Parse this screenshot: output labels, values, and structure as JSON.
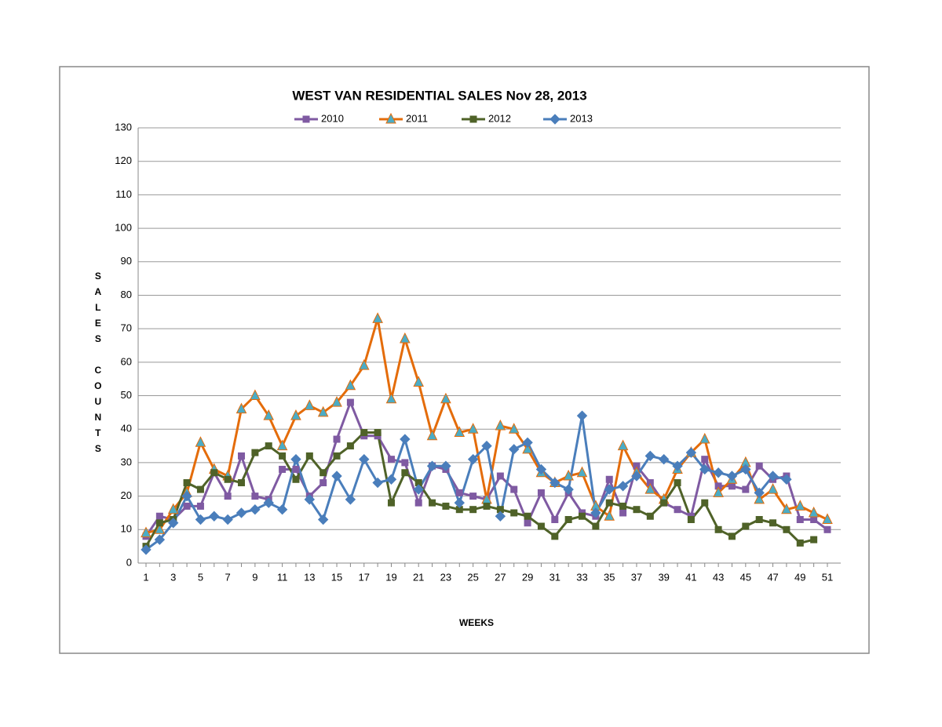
{
  "chart_data": {
    "type": "line",
    "title": "WEST VAN RESIDENTIAL SALES  Nov 28, 2013",
    "xlabel": "WEEKS",
    "ylabel": "SALES COUNTS",
    "categories": [
      1,
      null,
      3,
      null,
      5,
      null,
      7,
      null,
      9,
      null,
      11,
      null,
      13,
      null,
      15,
      null,
      17,
      null,
      19,
      null,
      21,
      null,
      23,
      null,
      25,
      null,
      27,
      null,
      29,
      null,
      31,
      null,
      33,
      null,
      35,
      null,
      37,
      null,
      39,
      null,
      41,
      null,
      43,
      null,
      45,
      null,
      47,
      null,
      49,
      null,
      51
    ],
    "ylim": [
      0,
      130
    ],
    "yticks": [
      0,
      10,
      20,
      30,
      40,
      50,
      60,
      70,
      80,
      90,
      100,
      110,
      120,
      130
    ],
    "grid": true,
    "legend": "top",
    "series": [
      {
        "name": "2010",
        "color": "#7f5aa2",
        "marker": "square",
        "values": [
          8,
          14,
          13,
          17,
          17,
          27,
          20,
          32,
          20,
          19,
          28,
          28,
          20,
          24,
          37,
          48,
          38,
          38,
          31,
          30,
          18,
          29,
          28,
          21,
          20,
          19,
          26,
          22,
          12,
          21,
          13,
          21,
          15,
          14,
          25,
          15,
          29,
          24,
          18,
          16,
          14,
          31,
          23,
          23,
          22,
          29,
          25,
          26,
          13,
          13,
          10
        ]
      },
      {
        "name": "2011",
        "color": "#e46c0a",
        "marker": "triangle",
        "marker_color": "#4bacc6",
        "values": [
          9,
          10,
          16,
          21,
          36,
          28,
          26,
          46,
          50,
          44,
          35,
          44,
          47,
          45,
          48,
          53,
          59,
          73,
          49,
          67,
          54,
          38,
          49,
          39,
          40,
          19,
          41,
          40,
          34,
          27,
          24,
          26,
          27,
          17,
          14,
          35,
          27,
          22,
          19,
          28,
          33,
          37,
          21,
          25,
          30,
          19,
          22,
          16,
          17,
          15,
          13
        ]
      },
      {
        "name": "2012",
        "color": "#4f6228",
        "marker": "square",
        "values": [
          5,
          12,
          13,
          24,
          22,
          27,
          25,
          24,
          33,
          35,
          32,
          25,
          32,
          27,
          32,
          35,
          39,
          39,
          18,
          27,
          24,
          18,
          17,
          16,
          16,
          17,
          16,
          15,
          14,
          11,
          8,
          13,
          14,
          11,
          18,
          17,
          16,
          14,
          18,
          24,
          13,
          18,
          10,
          8,
          11,
          13,
          12,
          10,
          6,
          7,
          null
        ]
      },
      {
        "name": "2013",
        "color": "#4a7ebb",
        "marker": "diamond",
        "values": [
          4,
          7,
          12,
          20,
          13,
          14,
          13,
          15,
          16,
          18,
          16,
          31,
          19,
          13,
          26,
          19,
          31,
          24,
          25,
          37,
          22,
          29,
          29,
          18,
          31,
          35,
          14,
          34,
          36,
          28,
          24,
          22,
          44,
          15,
          22,
          23,
          26,
          32,
          31,
          29,
          33,
          28,
          27,
          26,
          28,
          21,
          26,
          25,
          null,
          null,
          null
        ]
      }
    ]
  }
}
